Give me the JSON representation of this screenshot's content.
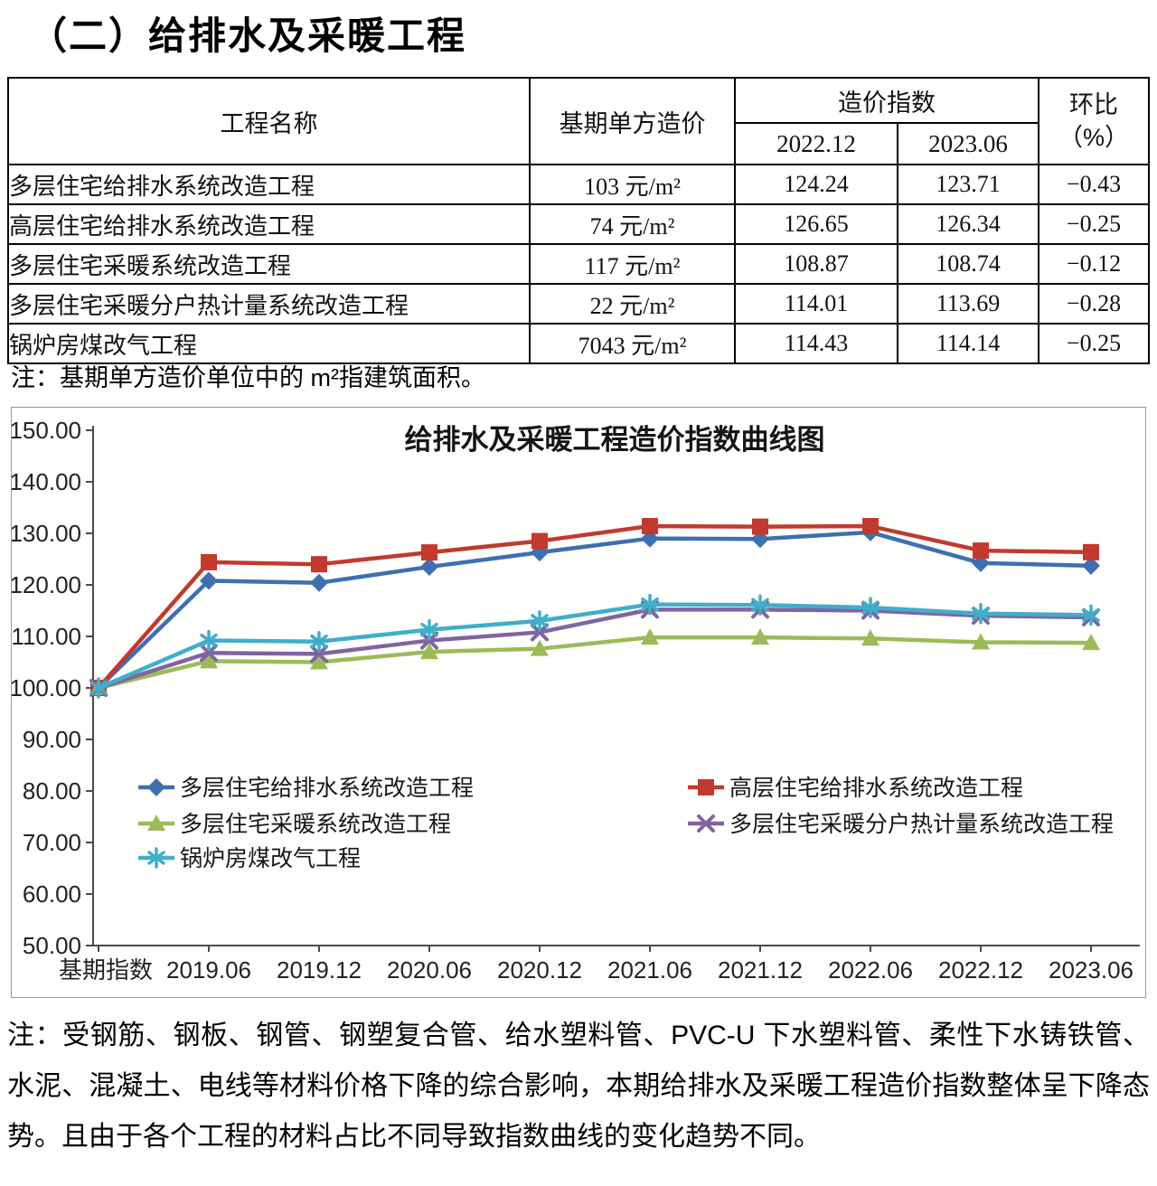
{
  "page": {
    "title": "（二）给排水及采暖工程"
  },
  "table": {
    "headers": {
      "name": "工程名称",
      "base": "基期单方造价",
      "index_group": "造价指数",
      "col1": "2022.12",
      "col2": "2023.06",
      "mom1": "环比",
      "mom2": "（%）"
    },
    "rows": [
      {
        "name": "多层住宅给排水系统改造工程",
        "base": "103 元/m²",
        "idx1": "124.24",
        "idx2": "123.71",
        "mom": "−0.43"
      },
      {
        "name": "高层住宅给排水系统改造工程",
        "base": "74 元/m²",
        "idx1": "126.65",
        "idx2": "126.34",
        "mom": "−0.25"
      },
      {
        "name": "多层住宅采暖系统改造工程",
        "base": "117 元/m²",
        "idx1": "108.87",
        "idx2": "108.74",
        "mom": "−0.12"
      },
      {
        "name": "多层住宅采暖分户热计量系统改造工程",
        "base": "22 元/m²",
        "idx1": "114.01",
        "idx2": "113.69",
        "mom": "−0.28"
      },
      {
        "name": "锅炉房煤改气工程",
        "base": "7043 元/m²",
        "idx1": "114.43",
        "idx2": "114.14",
        "mom": "−0.25"
      }
    ],
    "footnote": "注：基期单方造价单位中的 m²指建筑面积。"
  },
  "chart_data": {
    "type": "line",
    "title": "给排水及采暖工程造价指数曲线图",
    "categories": [
      "基期指数",
      "2019.06",
      "2019.12",
      "2020.06",
      "2020.12",
      "2021.06",
      "2021.12",
      "2022.06",
      "2022.12",
      "2023.06"
    ],
    "series": [
      {
        "name": "多层住宅给排水系统改造工程",
        "color": "#3E6FB0",
        "marker": "diamond",
        "values": [
          100.0,
          120.8,
          120.4,
          123.5,
          126.3,
          129.0,
          128.9,
          130.2,
          124.24,
          123.71
        ]
      },
      {
        "name": "高层住宅给排水系统改造工程",
        "color": "#C2392E",
        "marker": "square",
        "values": [
          100.0,
          124.4,
          124.0,
          126.3,
          128.5,
          131.4,
          131.3,
          131.4,
          126.65,
          126.34
        ]
      },
      {
        "name": "多层住宅采暖系统改造工程",
        "color": "#9BBB59",
        "marker": "triangle",
        "values": [
          100.0,
          105.2,
          105.0,
          107.0,
          107.6,
          109.8,
          109.8,
          109.6,
          108.87,
          108.74
        ]
      },
      {
        "name": "多层住宅采暖分户热计量系统改造工程",
        "color": "#8064A2",
        "marker": "x",
        "values": [
          100.0,
          106.8,
          106.6,
          109.2,
          110.8,
          115.2,
          115.2,
          115.0,
          114.01,
          113.69
        ]
      },
      {
        "name": "锅炉房煤改气工程",
        "color": "#3FAEC9",
        "marker": "asterisk",
        "values": [
          100.0,
          109.2,
          109.0,
          111.3,
          113.0,
          116.2,
          116.1,
          115.6,
          114.43,
          114.14
        ]
      }
    ],
    "ylim": [
      50,
      150
    ],
    "ytick_step": 10,
    "ytick_format": "0.00",
    "xlabel": "",
    "ylabel": "",
    "grid": false,
    "legend_position": "inside-bottom-left",
    "axis_color": "#4a4a4a"
  },
  "notes": {
    "bottom": "注：受钢筋、钢板、钢管、钢塑复合管、给水塑料管、PVC-U 下水塑料管、柔性下水铸铁管、水泥、混凝土、电线等材料价格下降的综合影响，本期给排水及采暖工程造价指数整体呈下降态势。且由于各个工程的材料占比不同导致指数曲线的变化趋势不同。"
  }
}
